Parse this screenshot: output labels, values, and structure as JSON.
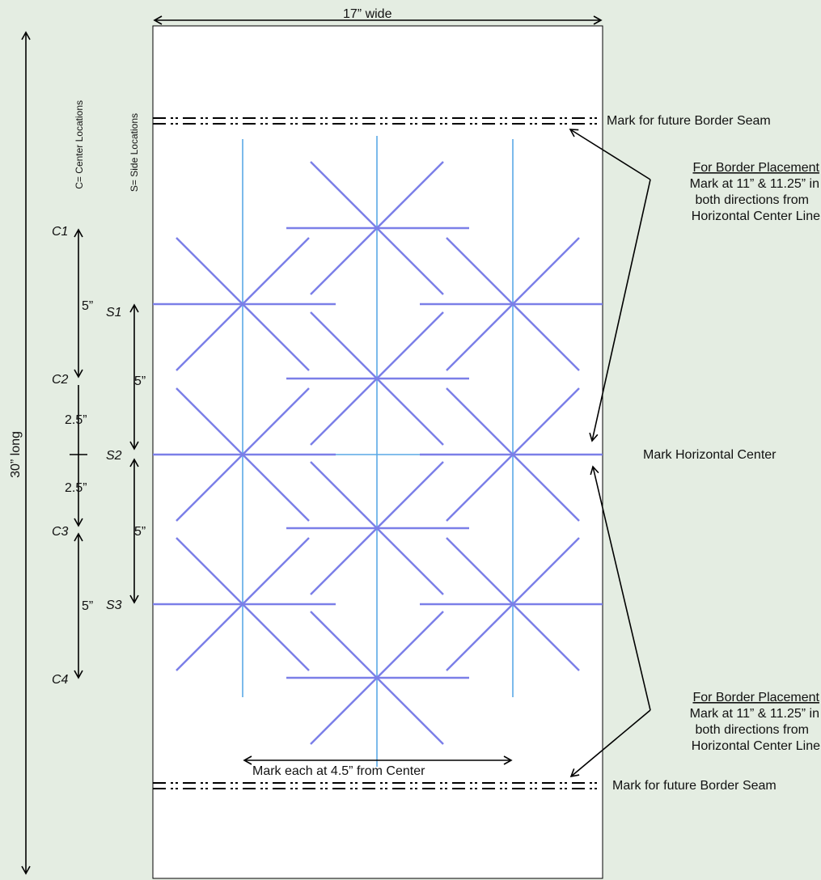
{
  "dimensions": {
    "width_label": "17” wide",
    "length_label": "30” long"
  },
  "axis_titles": {
    "center_locations": "C= Center Locations",
    "side_locations": "S= Side Locations"
  },
  "center_marks": [
    {
      "label": "C1"
    },
    {
      "label": "C2"
    },
    {
      "label": "C3"
    },
    {
      "label": "C4"
    }
  ],
  "side_marks": [
    {
      "label": "S1"
    },
    {
      "label": "S2"
    },
    {
      "label": "S3"
    }
  ],
  "spacing_labels": {
    "c1_c2": "5”",
    "c2_center": "2.5”",
    "center_c3": "2.5”",
    "c3_c4": "5”",
    "s1_s2": "5”",
    "s2_s3": "5”"
  },
  "annotations": {
    "seam_top": "Mark for future Border Seam",
    "seam_bottom": "Mark for future Border Seam",
    "horizontal_center": "Mark Horizontal Center",
    "placement_top": {
      "title": "For Border Placement",
      "line1": "Mark at 11” & 11.25” in",
      "line2": "both directions from",
      "line3": "Horizontal Center Line"
    },
    "placement_bottom": {
      "title": "For Border Placement",
      "line1": "Mark at 11” & 11.25” in",
      "line2": "both directions from",
      "line3": "Horizontal Center Line"
    },
    "column_spacing": "Mark each at 4.5” from Center"
  },
  "colors": {
    "background": "#e4ede2",
    "panel": "#ffffff",
    "marking_lines": "#7b7fe8",
    "guide_lines": "#5aa9e6"
  }
}
